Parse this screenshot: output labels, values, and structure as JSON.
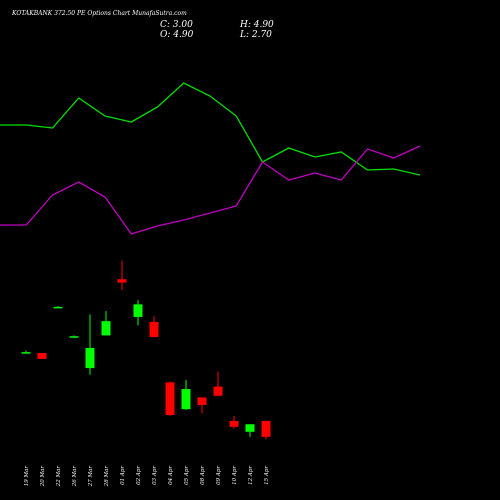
{
  "chart_data": [
    {
      "type": "candlestick",
      "title": "KOTAKBANK 372.50 PE Options Chart MunafaSutra.com",
      "header": {
        "close": "C: 3.00",
        "open": "O: 4.90",
        "high": "H: 4.90",
        "low": "L: 2.70"
      },
      "categories": [
        "19 Mar",
        "20 Mar",
        "22 Mar",
        "26 Mar",
        "27 Mar",
        "28 Mar",
        "01 Apr",
        "02 Apr",
        "03 Apr",
        "04 Apr",
        "05 Apr",
        "08 Apr",
        "09 Apr",
        "10 Apr",
        "12 Apr",
        "15 Apr"
      ],
      "open": [
        13.1,
        13.0,
        18.5,
        15.0,
        11.2,
        15.1,
        21.8,
        17.3,
        16.7,
        9.5,
        6.3,
        7.7,
        9.0,
        4.9,
        3.6,
        4.9
      ],
      "high": [
        13.3,
        13.0,
        18.6,
        15.1,
        17.6,
        18.0,
        24.0,
        19.3,
        17.4,
        9.6,
        9.8,
        7.7,
        10.8,
        5.5,
        4.5,
        4.9
      ],
      "low": [
        13.0,
        12.3,
        18.4,
        14.9,
        10.4,
        15.1,
        20.5,
        16.3,
        14.9,
        5.5,
        6.2,
        5.8,
        7.9,
        4.0,
        3.0,
        2.7
      ],
      "close": [
        13.1,
        12.3,
        18.5,
        15.0,
        13.6,
        16.8,
        21.4,
        18.8,
        14.9,
        5.6,
        8.7,
        6.8,
        7.9,
        4.2,
        4.5,
        3.0
      ],
      "up_color": "#00ff00",
      "down_color": "#ff0000",
      "ylim": [
        0,
        26
      ]
    },
    {
      "type": "line",
      "series": [
        {
          "color": "#00e000",
          "values": [
            67.5,
            67.5,
            66,
            81,
            72,
            69,
            76.5,
            88.5,
            82,
            72,
            49,
            56,
            51.5,
            54,
            45,
            45.5,
            42.5
          ]
        },
        {
          "color": "#c000c0",
          "values": [
            17.5,
            17.5,
            32.5,
            39,
            31.5,
            13,
            17,
            20,
            23.5,
            27,
            49,
            40,
            43.5,
            40,
            55.5,
            51,
            57
          ]
        }
      ],
      "ylim": [
        0,
        100
      ]
    }
  ]
}
